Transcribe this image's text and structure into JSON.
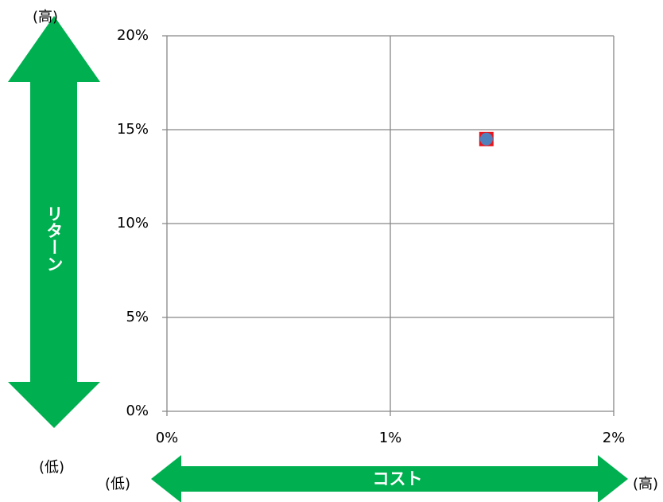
{
  "chart_data": {
    "type": "scatter",
    "series": [
      {
        "x": [
          1.43
        ],
        "values": [
          14.5
        ],
        "color": "#4f81bd",
        "marker_back_color": "#e8161c"
      }
    ],
    "xlim": [
      0,
      2
    ],
    "xticks": [
      {
        "value": 0,
        "label": "0%"
      },
      {
        "value": 1,
        "label": "1%"
      },
      {
        "value": 2,
        "label": "2%"
      }
    ],
    "ylim": [
      0,
      20
    ],
    "yticks": [
      {
        "value": 0,
        "label": "0%"
      },
      {
        "value": 5,
        "label": "5%"
      },
      {
        "value": 10,
        "label": "10%"
      },
      {
        "value": 15,
        "label": "15%"
      },
      {
        "value": 20,
        "label": "20%"
      }
    ],
    "grid": true,
    "y_axis": {
      "label": "リターン",
      "high": "(高)",
      "low": "(低)"
    },
    "x_axis": {
      "label": "コスト",
      "high": "(高)",
      "low": "(低)"
    },
    "arrow_color": "#00b050"
  }
}
